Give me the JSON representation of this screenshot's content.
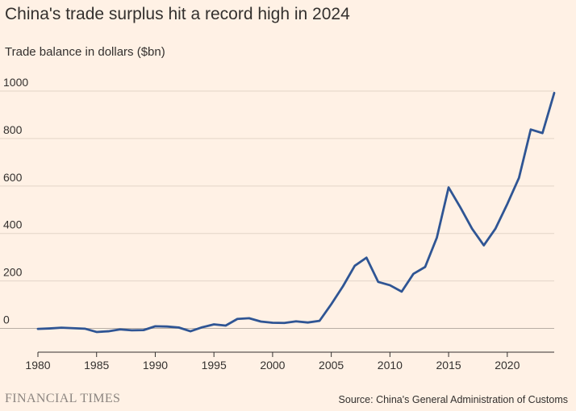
{
  "header": {
    "title": "China's trade surplus hit a record high in 2024",
    "subtitle": "Trade balance in dollars ($bn)"
  },
  "footer": {
    "brand": "FINANCIAL TIMES",
    "source": "Source: China's General Administration of Customs"
  },
  "colors": {
    "background": "#FFF1E5",
    "line": "#2F5594",
    "grid": "#E3D5C8",
    "zero_line": "#B8AEA5",
    "axis": "#33302E",
    "text": "#33302E",
    "brand": "#8C8580"
  },
  "chart_data": {
    "type": "line",
    "title": "China's trade surplus hit a record high in 2024",
    "subtitle": "Trade balance in dollars ($bn)",
    "xlabel": "",
    "ylabel": "",
    "xlim": [
      1980,
      2024
    ],
    "ylim": [
      -100,
      1000
    ],
    "xticks": [
      1980,
      1985,
      1990,
      1995,
      2000,
      2005,
      2010,
      2015,
      2020
    ],
    "yticks": [
      0,
      200,
      400,
      600,
      800,
      1000
    ],
    "grid": true,
    "legend": "none",
    "series": [
      {
        "x": [
          1980,
          1981,
          1982,
          1983,
          1984,
          1985,
          1986,
          1987,
          1988,
          1989,
          1990,
          1991,
          1992,
          1993,
          1994,
          1995,
          1996,
          1997,
          1998,
          1999,
          2000,
          2001,
          2002,
          2003,
          2004,
          2005,
          2006,
          2007,
          2008,
          2009,
          2010,
          2011,
          2012,
          2013,
          2014,
          2015,
          2016,
          2017,
          2018,
          2019,
          2020,
          2021,
          2022,
          2023,
          2024
        ],
        "values": [
          -2,
          0,
          3,
          1,
          -1,
          -15,
          -12,
          -4,
          -8,
          -7,
          9,
          8,
          4,
          -12,
          5,
          17,
          12,
          40,
          43,
          29,
          24,
          23,
          30,
          25,
          32,
          102,
          178,
          264,
          298,
          196,
          182,
          155,
          230,
          259,
          383,
          594,
          510,
          420,
          350,
          421,
          524,
          635,
          838,
          823,
          992
        ]
      }
    ]
  }
}
